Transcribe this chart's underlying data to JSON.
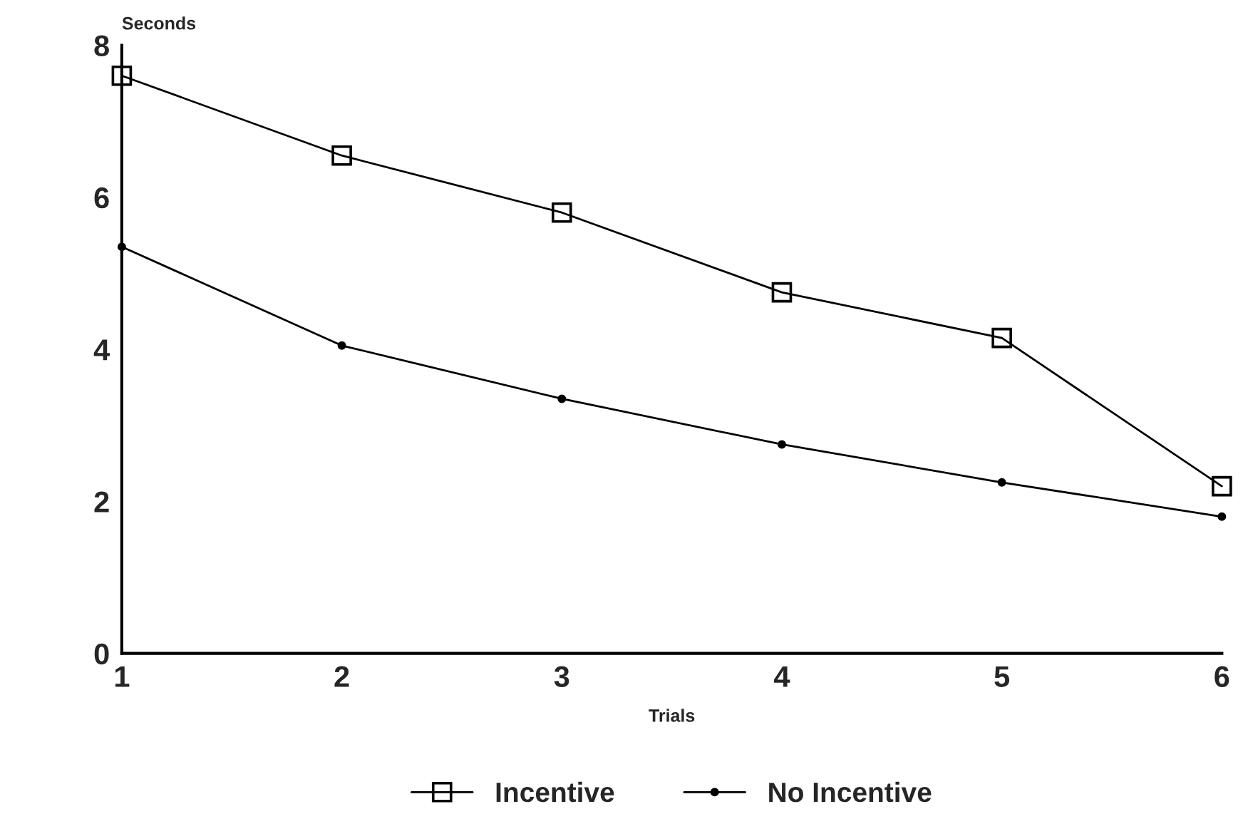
{
  "chart_data": {
    "type": "line",
    "ylabel": "Seconds",
    "xlabel": "Trials",
    "x": [
      1,
      2,
      3,
      4,
      5,
      6
    ],
    "xlim": [
      1,
      6
    ],
    "xticks": [
      1,
      2,
      3,
      4,
      5,
      6
    ],
    "ylim": [
      0,
      8
    ],
    "yticks": [
      0,
      2,
      4,
      6,
      8
    ],
    "series": [
      {
        "name": "Incentive",
        "color": "#000000",
        "marker": "square",
        "values": [
          7.6,
          6.55,
          5.8,
          4.75,
          4.15,
          2.2
        ]
      },
      {
        "name": "No Incentive",
        "color": "#000000",
        "marker": "circle",
        "values": [
          5.35,
          4.05,
          3.35,
          2.75,
          2.25,
          1.8
        ]
      }
    ],
    "grid": false,
    "legend": "bottom",
    "line_style": "solid"
  }
}
